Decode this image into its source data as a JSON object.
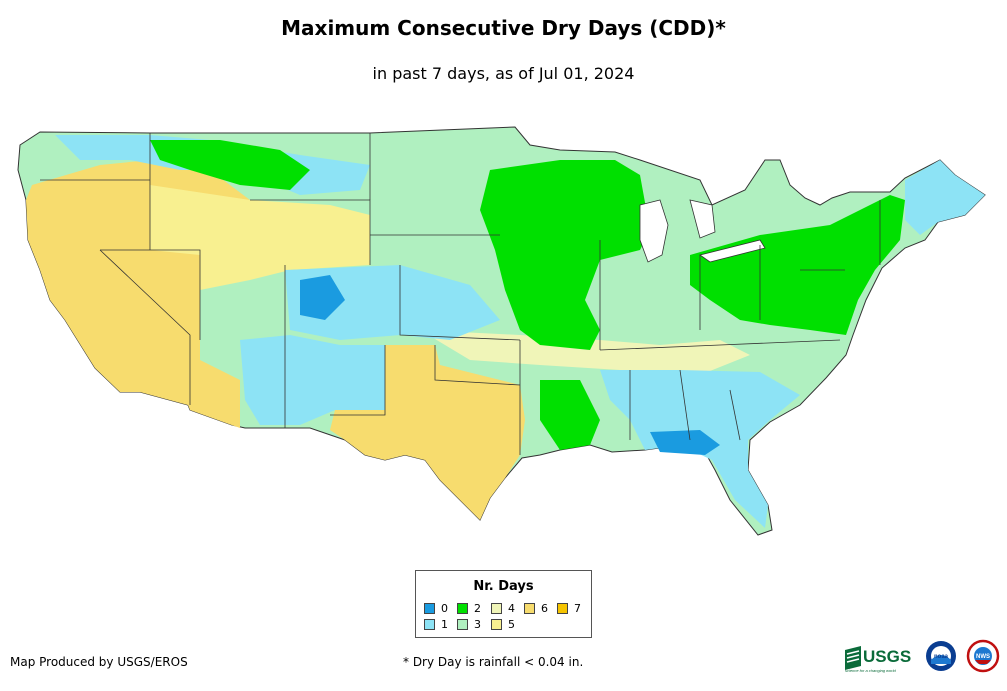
{
  "title": "Maximum Consecutive Dry Days (CDD)*",
  "subtitle": "in past 7 days, as of Jul 01, 2024",
  "legend": {
    "title": "Nr. Days",
    "items": [
      {
        "label": "0",
        "color": "#1a9be0"
      },
      {
        "label": "1",
        "color": "#8de3f5"
      },
      {
        "label": "2",
        "color": "#00e000"
      },
      {
        "label": "3",
        "color": "#b0f0c0"
      },
      {
        "label": "4",
        "color": "#f0f5b8"
      },
      {
        "label": "5",
        "color": "#f8f090"
      },
      {
        "label": "6",
        "color": "#f7dc6e"
      },
      {
        "label": "7",
        "color": "#f5c400"
      }
    ]
  },
  "footer": {
    "producer": "Map Produced by USGS/EROS",
    "note": "* Dry Day is rainfall < 0.04 in."
  },
  "logos": {
    "usgs": "USGS",
    "usgs_tagline": "science for a changing world",
    "noaa": "noaa",
    "nws": "NWS"
  }
}
